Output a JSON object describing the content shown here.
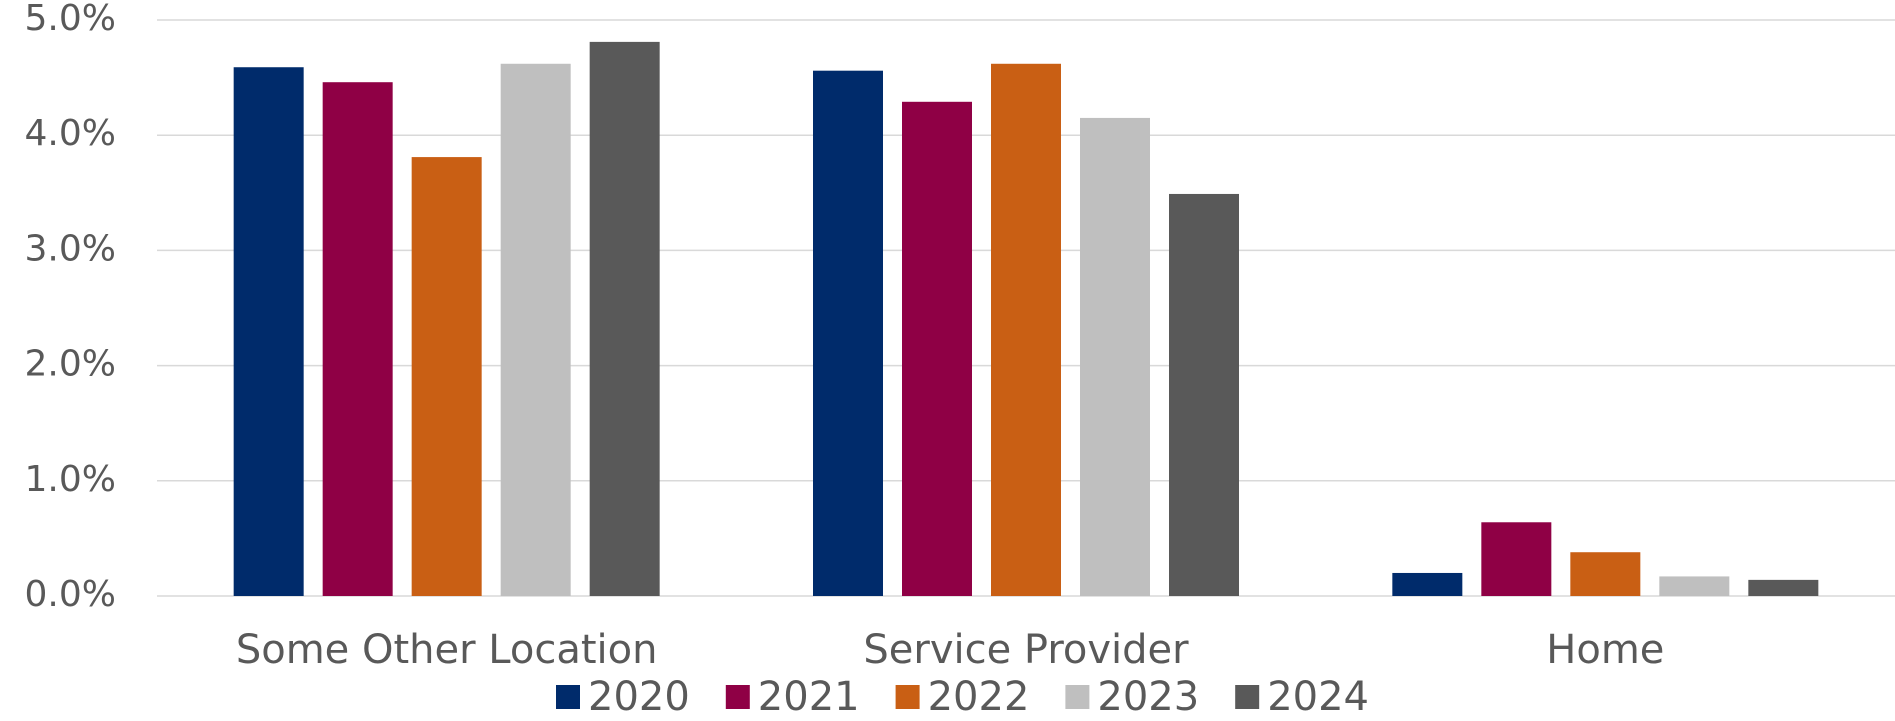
{
  "chart_data": {
    "type": "bar",
    "categories": [
      "Some Other Location",
      "Service Provider",
      "Home"
    ],
    "series": [
      {
        "name": "2020",
        "color": "#002b6b",
        "values": [
          4.59,
          4.56,
          0.2
        ]
      },
      {
        "name": "2021",
        "color": "#8f0045",
        "values": [
          4.46,
          4.29,
          0.64
        ]
      },
      {
        "name": "2022",
        "color": "#c95f14",
        "values": [
          3.81,
          4.62,
          0.38
        ]
      },
      {
        "name": "2023",
        "color": "#bfbfbf",
        "values": [
          4.62,
          4.15,
          0.17
        ]
      },
      {
        "name": "2024",
        "color": "#595959",
        "values": [
          4.81,
          3.49,
          0.14
        ]
      }
    ],
    "ylim": [
      0,
      5
    ],
    "yticks": [
      {
        "value": 0,
        "label": "0.0%"
      },
      {
        "value": 1,
        "label": "1.0%"
      },
      {
        "value": 2,
        "label": "2.0%"
      },
      {
        "value": 3,
        "label": "3.0%"
      },
      {
        "value": 4,
        "label": "4.0%"
      },
      {
        "value": 5,
        "label": "5.0%"
      }
    ],
    "grid": true,
    "legend": "bottom"
  }
}
